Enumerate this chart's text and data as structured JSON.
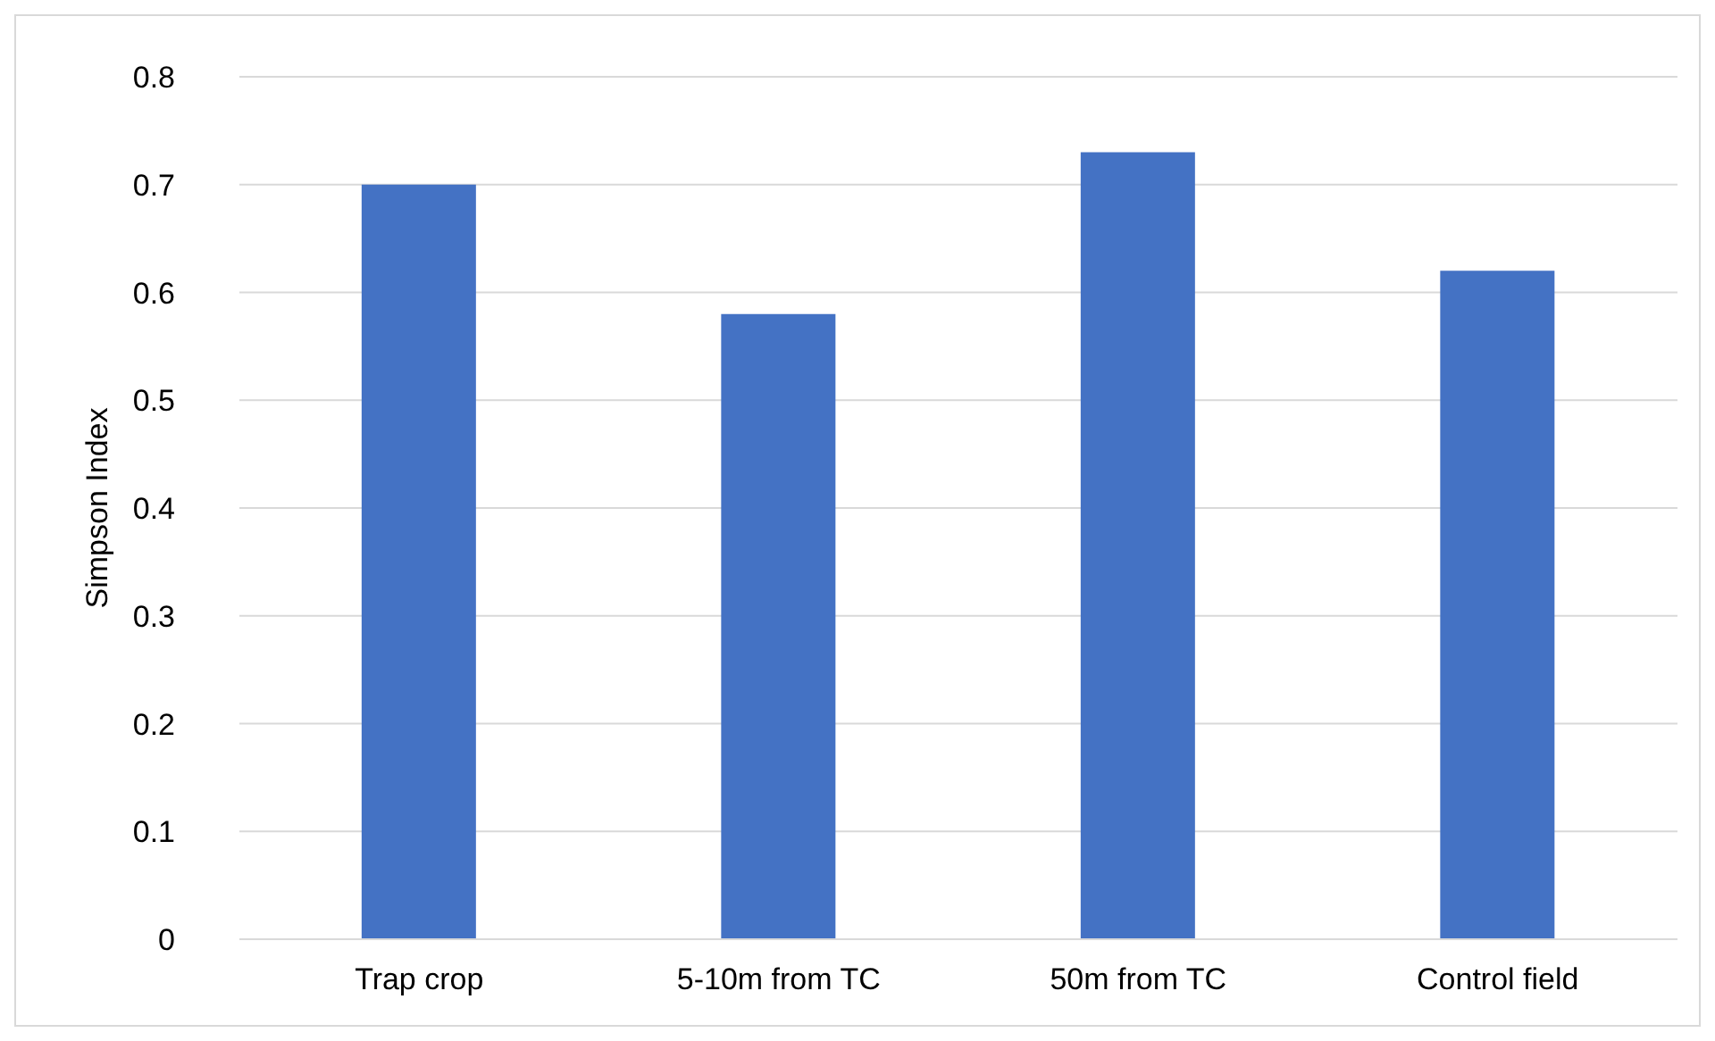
{
  "chart_data": {
    "type": "bar",
    "ylabel": "Simpson Index",
    "categories": [
      "Trap crop",
      "5-10m from TC",
      "50m from TC",
      "Control field"
    ],
    "values": [
      0.7,
      0.58,
      0.73,
      0.62
    ],
    "color": "#4472c4",
    "ylim": [
      0,
      0.8
    ],
    "yticks": [
      0,
      {
        "value": 0.1,
        "label": "0.1"
      },
      {
        "value": 0.2,
        "label": "0.2"
      },
      {
        "value": 0.3,
        "label": "0.3"
      },
      {
        "value": 0.4,
        "label": "0.4"
      },
      {
        "value": 0.5,
        "label": "0.5"
      },
      {
        "value": 0.6,
        "label": "0.6"
      },
      {
        "value": 0.7,
        "label": "0.7"
      },
      {
        "value": 0.8,
        "label": "0.8"
      }
    ],
    "grid": "y"
  }
}
